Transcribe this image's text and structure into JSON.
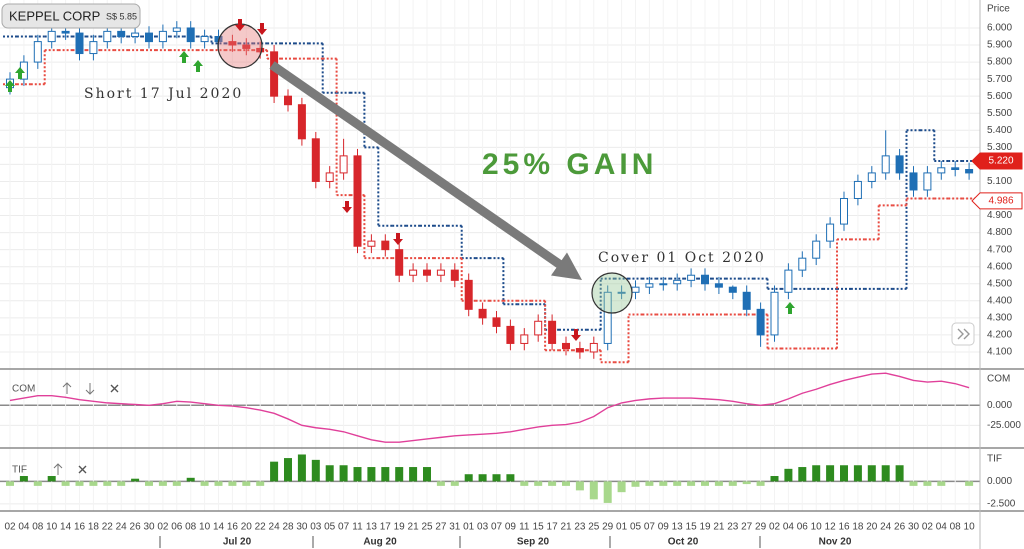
{
  "header": {
    "symbol": "KEPPEL CORP",
    "price": "S$ 5.85"
  },
  "chart_data": [
    {
      "type": "candlestick",
      "y_label": "Price",
      "annotations": [
        "Short 17 Jul 2020",
        "25% GAIN",
        "Cover 01 Oct 2020"
      ],
      "categories": [
        "02",
        "04",
        "08",
        "10",
        "14",
        "16",
        "18",
        "22",
        "24",
        "26",
        "30",
        "02",
        "06",
        "08",
        "10",
        "14",
        "16",
        "20",
        "22",
        "24",
        "28",
        "30",
        "03",
        "05",
        "07",
        "11",
        "13",
        "17",
        "19",
        "21",
        "25",
        "27",
        "31",
        "01",
        "03",
        "07",
        "09",
        "11",
        "15",
        "17",
        "21",
        "23",
        "25",
        "29",
        "01",
        "05",
        "07",
        "09",
        "13",
        "15",
        "19",
        "21",
        "23",
        "27",
        "29",
        "02",
        "04",
        "06",
        "10",
        "12",
        "16",
        "18",
        "20",
        "24",
        "26",
        "30",
        "02",
        "04",
        "08",
        "10"
      ],
      "month_labels": [
        "Jul 20",
        "Aug 20",
        "Sep 20",
        "Oct 20",
        "Nov 20"
      ],
      "open": [
        5.65,
        5.7,
        5.8,
        5.92,
        5.98,
        5.97,
        5.85,
        5.92,
        5.98,
        5.95,
        5.97,
        5.92,
        5.98,
        6.0,
        5.92,
        5.95,
        5.92,
        5.9,
        5.88,
        5.86,
        5.6,
        5.55,
        5.35,
        5.1,
        5.15,
        5.25,
        4.72,
        4.75,
        4.7,
        4.55,
        4.58,
        4.55,
        4.58,
        4.52,
        4.35,
        4.3,
        4.25,
        4.15,
        4.2,
        4.28,
        4.15,
        4.12,
        4.1,
        4.15,
        4.45,
        4.45,
        4.48,
        4.5,
        4.5,
        4.52,
        4.55,
        4.5,
        4.48,
        4.45,
        4.35,
        4.2,
        4.45,
        4.58,
        4.65,
        4.75,
        4.85,
        5.0,
        5.1,
        5.15,
        5.25,
        5.15,
        5.05,
        5.15,
        5.18,
        5.17
      ],
      "high": [
        5.74,
        5.84,
        5.96,
        6.02,
        6.02,
        6.01,
        5.96,
        6.02,
        6.02,
        6.01,
        6.01,
        6.02,
        6.04,
        6.04,
        5.99,
        5.99,
        5.96,
        5.94,
        5.92,
        5.9,
        5.64,
        5.59,
        5.39,
        5.19,
        5.35,
        5.29,
        4.79,
        4.79,
        4.74,
        4.62,
        4.62,
        4.62,
        4.62,
        4.56,
        4.39,
        4.34,
        4.29,
        4.24,
        4.32,
        4.32,
        4.19,
        4.16,
        4.19,
        4.49,
        4.49,
        4.52,
        4.54,
        4.54,
        4.56,
        4.59,
        4.59,
        4.54,
        4.49,
        4.49,
        4.39,
        4.49,
        4.62,
        4.69,
        4.79,
        4.89,
        5.04,
        5.14,
        5.19,
        5.4,
        5.29,
        5.19,
        5.19,
        5.22,
        5.22,
        5.21
      ],
      "low": [
        5.61,
        5.66,
        5.76,
        5.88,
        5.93,
        5.81,
        5.81,
        5.88,
        5.91,
        5.91,
        5.88,
        5.88,
        5.94,
        5.88,
        5.88,
        5.88,
        5.86,
        5.84,
        5.82,
        5.56,
        5.51,
        5.31,
        5.06,
        5.06,
        5.11,
        4.68,
        4.68,
        4.66,
        4.51,
        4.51,
        4.51,
        4.51,
        4.48,
        4.31,
        4.26,
        4.21,
        4.11,
        4.11,
        4.16,
        4.11,
        4.08,
        4.06,
        4.06,
        4.11,
        4.41,
        4.41,
        4.44,
        4.46,
        4.46,
        4.48,
        4.46,
        4.44,
        4.41,
        4.31,
        4.13,
        4.16,
        4.41,
        4.54,
        4.61,
        4.71,
        4.81,
        4.96,
        5.06,
        5.11,
        5.11,
        5.01,
        5.01,
        5.11,
        5.13,
        5.11
      ],
      "close": [
        5.7,
        5.8,
        5.92,
        5.98,
        5.97,
        5.85,
        5.92,
        5.98,
        5.95,
        5.97,
        5.92,
        5.98,
        6.0,
        5.92,
        5.95,
        5.92,
        5.9,
        5.88,
        5.86,
        5.6,
        5.55,
        5.35,
        5.1,
        5.15,
        5.25,
        4.72,
        4.75,
        4.7,
        4.55,
        4.58,
        4.55,
        4.58,
        4.52,
        4.35,
        4.3,
        4.25,
        4.15,
        4.2,
        4.28,
        4.15,
        4.12,
        4.1,
        4.15,
        4.45,
        4.45,
        4.48,
        4.5,
        4.5,
        4.52,
        4.55,
        4.5,
        4.48,
        4.45,
        4.35,
        4.2,
        4.45,
        4.58,
        4.65,
        4.75,
        4.85,
        5.0,
        5.1,
        5.15,
        5.25,
        5.15,
        5.05,
        5.15,
        5.18,
        5.17,
        5.15
      ],
      "colors": [
        "#1f6fb5",
        "#1f6fb5",
        "#1f6fb5",
        "#1f6fb5",
        "#1f6fb5",
        "#1f6fb5",
        "#1f6fb5",
        "#1f6fb5",
        "#1f6fb5",
        "#1f6fb5",
        "#1f6fb5",
        "#1f6fb5",
        "#1f6fb5",
        "#1f6fb5",
        "#1f6fb5",
        "#1f6fb5",
        "#d7262b",
        "#d7262b",
        "#d7262b",
        "#d7262b",
        "#d7262b",
        "#d7262b",
        "#d7262b",
        "#d7262b",
        "#d7262b",
        "#d7262b",
        "#d7262b",
        "#d7262b",
        "#d7262b",
        "#d7262b",
        "#d7262b",
        "#d7262b",
        "#d7262b",
        "#d7262b",
        "#d7262b",
        "#d7262b",
        "#d7262b",
        "#d7262b",
        "#d7262b",
        "#d7262b",
        "#d7262b",
        "#d7262b",
        "#d7262b",
        "#1f6fb5",
        "#1f6fb5",
        "#1f6fb5",
        "#1f6fb5",
        "#1f6fb5",
        "#1f6fb5",
        "#1f6fb5",
        "#1f6fb5",
        "#1f6fb5",
        "#1f6fb5",
        "#1f6fb5",
        "#1f6fb5",
        "#1f6fb5",
        "#1f6fb5",
        "#1f6fb5",
        "#1f6fb5",
        "#1f6fb5",
        "#1f6fb5",
        "#1f6fb5",
        "#1f6fb5",
        "#1f6fb5",
        "#1f6fb5",
        "#1f6fb5",
        "#1f6fb5",
        "#1f6fb5",
        "#1f6fb5",
        "#1f6fb5"
      ],
      "stop_lines": [
        {
          "color": "#1b4a8a",
          "values": [
            5.95,
            5.95,
            5.95,
            5.95,
            5.95,
            5.95,
            5.95,
            5.95,
            5.95,
            5.95,
            5.95,
            5.95,
            5.95,
            5.95,
            5.95,
            5.91,
            5.91,
            5.91,
            5.91,
            5.91,
            5.91,
            5.91,
            5.91,
            5.62,
            5.62,
            5.62,
            5.3,
            4.84,
            4.84,
            4.84,
            4.84,
            4.84,
            4.84,
            4.65,
            4.65,
            4.65,
            4.38,
            4.38,
            4.38,
            4.23,
            4.23,
            4.23,
            4.23,
            4.53,
            4.53,
            4.53,
            4.53,
            4.53,
            4.53,
            4.53,
            4.53,
            4.53,
            4.53,
            4.53,
            4.53,
            4.47,
            4.47,
            4.47,
            4.47,
            4.47,
            4.47,
            4.47,
            4.47,
            4.47,
            4.47,
            5.4,
            5.4,
            5.22,
            5.22,
            5.22
          ]
        },
        {
          "color": "#e84a40",
          "values": [
            5.67,
            5.67,
            5.67,
            5.87,
            5.87,
            5.87,
            5.87,
            5.87,
            5.87,
            5.87,
            5.87,
            5.87,
            5.87,
            5.87,
            5.87,
            5.87,
            5.87,
            5.87,
            5.87,
            5.82,
            5.82,
            5.82,
            5.82,
            5.82,
            5.02,
            5.02,
            4.65,
            4.65,
            4.65,
            4.65,
            4.65,
            4.65,
            4.65,
            4.4,
            4.4,
            4.4,
            4.4,
            4.4,
            4.4,
            4.11,
            4.11,
            4.11,
            4.11,
            4.04,
            4.04,
            4.32,
            4.32,
            4.32,
            4.32,
            4.32,
            4.32,
            4.32,
            4.32,
            4.32,
            4.32,
            4.12,
            4.12,
            4.12,
            4.12,
            4.12,
            4.76,
            4.76,
            4.76,
            4.96,
            4.96,
            5.0,
            5.0,
            5.0,
            5.0,
            5.0
          ]
        }
      ],
      "price_markers": [
        {
          "value": 5.22,
          "label": "5.220",
          "fill": "#e0211b",
          "text_color": "#ffffff"
        },
        {
          "value": 4.986,
          "label": "4.986",
          "fill": "#ffffff",
          "text_color": "#e0211b"
        }
      ],
      "ylim": [
        4.006,
        6.164
      ],
      "yticks": [
        {
          "value": 4.1,
          "label": "4.100"
        },
        {
          "value": 4.2,
          "label": "4.200"
        },
        {
          "value": 4.3,
          "label": "4.300"
        },
        {
          "value": 4.4,
          "label": "4.400"
        },
        {
          "value": 4.5,
          "label": "4.500"
        },
        {
          "value": 4.6,
          "label": "4.600"
        },
        {
          "value": 4.7,
          "label": "4.700"
        },
        {
          "value": 4.8,
          "label": "4.800"
        },
        {
          "value": 4.9,
          "label": "4.900"
        },
        {
          "value": 5.0,
          "label": "5.000"
        },
        {
          "value": 5.1,
          "label": "5.100"
        },
        {
          "value": 5.2,
          "label": "5.200"
        },
        {
          "value": 5.3,
          "label": "5.300"
        },
        {
          "value": 5.4,
          "label": "5.400"
        },
        {
          "value": 5.5,
          "label": "5.500"
        },
        {
          "value": 5.6,
          "label": "5.600"
        },
        {
          "value": 5.7,
          "label": "5.700"
        },
        {
          "value": 5.8,
          "label": "5.800"
        },
        {
          "value": 5.9,
          "label": "5.900"
        },
        {
          "value": 6.0,
          "label": "6.000"
        }
      ],
      "grid": true
    },
    {
      "type": "line",
      "title": "COM",
      "color": "#e0409a",
      "values": [
        6,
        9,
        12,
        12,
        10,
        7,
        5,
        3,
        2,
        1,
        0,
        2,
        5,
        4,
        2,
        0,
        -1,
        -3,
        -6,
        -10,
        -17,
        -25,
        -28,
        -30,
        -33,
        -38,
        -43,
        -46,
        -46,
        -44,
        -42,
        -40,
        -38,
        -37,
        -36,
        -35,
        -33,
        -30,
        -27,
        -25,
        -24,
        -21,
        -14,
        -3,
        3,
        6,
        8,
        9,
        9,
        9,
        8,
        7,
        5,
        2,
        0,
        2,
        8,
        15,
        20,
        26,
        31,
        35,
        39,
        40,
        36,
        31,
        29,
        30,
        27,
        22
      ],
      "ylim": [
        -52,
        44
      ],
      "yticks": [
        {
          "value": 0,
          "label": "0.000"
        },
        {
          "value": -25,
          "label": "-25.000"
        }
      ]
    },
    {
      "type": "bar",
      "title": "TIF",
      "positive_color": "#2e8b1f",
      "negative_color": "#a8d88c",
      "values": [
        -0.5,
        0.6,
        -0.5,
        0.6,
        -0.5,
        -0.5,
        -0.5,
        -0.5,
        -0.5,
        0.3,
        -0.5,
        -0.5,
        -0.5,
        0.4,
        -0.5,
        -0.5,
        -0.5,
        -0.5,
        -0.5,
        2.2,
        2.6,
        3.0,
        2.4,
        1.8,
        1.8,
        1.6,
        1.6,
        1.6,
        1.6,
        1.6,
        1.6,
        -0.5,
        -0.5,
        0.8,
        0.8,
        0.8,
        0.8,
        -0.5,
        -0.5,
        -0.5,
        -0.5,
        -1.0,
        -2.0,
        -2.4,
        -1.2,
        -0.6,
        -0.5,
        -0.5,
        -0.5,
        -0.5,
        -0.5,
        -0.5,
        -0.5,
        -0.3,
        -0.5,
        0.6,
        1.4,
        1.6,
        1.8,
        1.8,
        1.8,
        1.8,
        1.8,
        1.8,
        1.8,
        -0.5,
        -0.5,
        -0.5,
        0,
        -0.5
      ],
      "ylim": [
        -3.3,
        3.5
      ],
      "yticks": [
        {
          "value": 0,
          "label": "0.000"
        },
        {
          "value": -2.5,
          "label": "-2.500"
        }
      ]
    }
  ]
}
